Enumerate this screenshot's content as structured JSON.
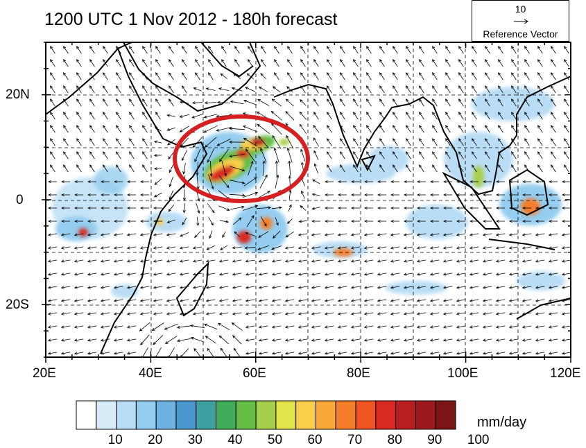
{
  "title": "1200 UTC 1 Nov 2012 - 180h forecast",
  "reference_vector": {
    "magnitude": "10",
    "label": "Reference Vector"
  },
  "lon_labels": [
    "20E",
    "40E",
    "60E",
    "80E",
    "100E",
    "120E"
  ],
  "lat_labels": [
    "20N",
    "0",
    "20S"
  ],
  "colorbar": {
    "units": "mm/day",
    "tick_labels": [
      "10",
      "20",
      "30",
      "40",
      "50",
      "60",
      "70",
      "80",
      "90",
      "100"
    ],
    "colors": [
      "#ffffff",
      "#d8ecf8",
      "#b9ddf4",
      "#94cdef",
      "#6fb2e2",
      "#4b96cc",
      "#3d9f9f",
      "#3fad5a",
      "#64bd47",
      "#a7cf4e",
      "#e3e34b",
      "#f9cf4b",
      "#f9a83a",
      "#f57e2c",
      "#ee5523",
      "#d82a21",
      "#b81d22",
      "#9c1a1e",
      "#7a1416"
    ]
  },
  "colors": {
    "highlight_ellipse": "#d42020",
    "coastline": "#000000"
  }
}
